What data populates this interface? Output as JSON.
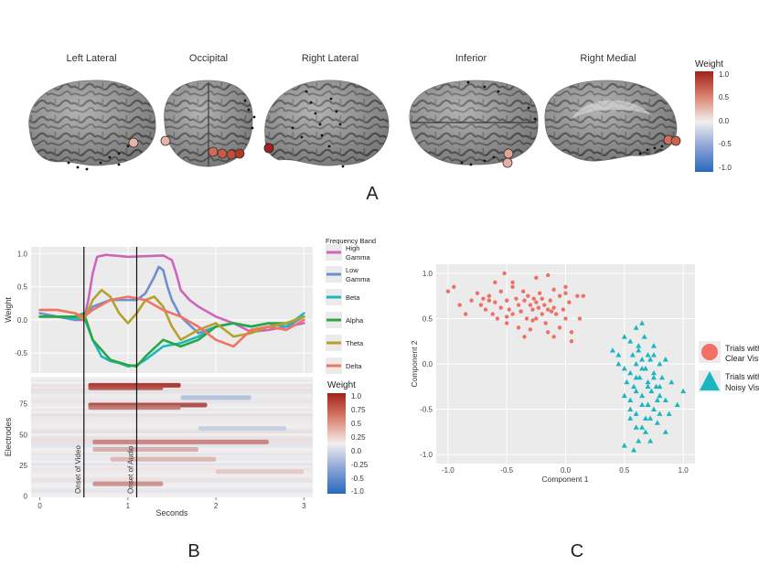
{
  "panel_labels": [
    "A",
    "B",
    "C"
  ],
  "brain_views": [
    {
      "label": "Left Lateral",
      "electrodes": [
        0.55
      ]
    },
    {
      "label": "Occipital",
      "electrodes": [
        0.45,
        0.72,
        0.8,
        0.88,
        0.95
      ]
    },
    {
      "label": "Right Lateral",
      "electrodes": [
        1.0
      ]
    },
    {
      "label": "Inferior",
      "electrodes": [
        0.55,
        0.5
      ]
    },
    {
      "label": "Right Medial",
      "electrodes": [
        0.75,
        0.8
      ]
    }
  ],
  "weight_legend": {
    "title": "Weight",
    "ticks": [
      "1.0",
      "0.5",
      "0.0",
      "-0.5",
      "-1.0"
    ]
  },
  "chart_data": [
    {
      "type": "line",
      "panel": "B",
      "xlabel": "",
      "ylabel": "Weight",
      "xlim": [
        -0.1,
        3.1
      ],
      "ylim": [
        -0.8,
        1.1
      ],
      "yticks": [
        "1.0",
        "0.5",
        "0.0",
        "-0.5"
      ],
      "yticks_values": [
        1.0,
        0.5,
        0.0,
        -0.5
      ],
      "legend_title": "Frequency Band",
      "events": [
        {
          "x": 0.5,
          "label": "Onset of Video"
        },
        {
          "x": 1.1,
          "label": "Onset of Audio"
        }
      ],
      "series": [
        {
          "name": "High Gamma",
          "color": "#cc66bb",
          "x": [
            0,
            0.2,
            0.4,
            0.5,
            0.55,
            0.6,
            0.65,
            0.75,
            1.0,
            1.2,
            1.4,
            1.5,
            1.55,
            1.6,
            1.7,
            1.8,
            2.0,
            2.2,
            2.4,
            2.6,
            2.8,
            3.0
          ],
          "y": [
            0.05,
            0.05,
            0.0,
            0.0,
            0.3,
            0.7,
            0.95,
            0.98,
            0.95,
            0.96,
            0.97,
            0.9,
            0.7,
            0.45,
            0.3,
            0.2,
            0.05,
            -0.05,
            -0.18,
            -0.15,
            -0.1,
            -0.05
          ]
        },
        {
          "name": "Low Gamma",
          "color": "#6e8fcf",
          "x": [
            0,
            0.2,
            0.4,
            0.5,
            0.6,
            0.8,
            1.0,
            1.1,
            1.2,
            1.3,
            1.35,
            1.4,
            1.45,
            1.5,
            1.6,
            1.8,
            2.0,
            2.2,
            2.4,
            2.6,
            2.8,
            3.0
          ],
          "y": [
            0.1,
            0.05,
            0.0,
            0.05,
            0.2,
            0.3,
            0.3,
            0.3,
            0.4,
            0.65,
            0.8,
            0.75,
            0.5,
            0.3,
            0.05,
            -0.2,
            -0.1,
            -0.05,
            -0.1,
            -0.05,
            -0.1,
            0.05
          ]
        },
        {
          "name": "Beta",
          "color": "#1db7c2",
          "x": [
            0,
            0.2,
            0.4,
            0.5,
            0.6,
            0.7,
            0.8,
            0.9,
            1.0,
            1.1,
            1.2,
            1.3,
            1.4,
            1.6,
            1.8,
            2.0,
            2.2,
            2.4,
            2.6,
            2.8,
            3.0
          ],
          "y": [
            0.05,
            0.05,
            0.02,
            0.05,
            -0.3,
            -0.55,
            -0.62,
            -0.65,
            -0.7,
            -0.68,
            -0.6,
            -0.5,
            -0.4,
            -0.35,
            -0.25,
            -0.1,
            -0.05,
            -0.1,
            -0.05,
            -0.1,
            0.1
          ]
        },
        {
          "name": "Alpha",
          "color": "#2aa742",
          "x": [
            0,
            0.2,
            0.4,
            0.5,
            0.6,
            0.8,
            1.0,
            1.1,
            1.2,
            1.4,
            1.6,
            1.8,
            2.0,
            2.2,
            2.4,
            2.6,
            2.8,
            3.0
          ],
          "y": [
            0.05,
            0.05,
            0.05,
            0.1,
            -0.3,
            -0.6,
            -0.68,
            -0.7,
            -0.55,
            -0.3,
            -0.4,
            -0.3,
            -0.1,
            -0.05,
            -0.1,
            -0.05,
            -0.05,
            0.05
          ]
        },
        {
          "name": "Theta",
          "color": "#b5a22c",
          "x": [
            0,
            0.2,
            0.4,
            0.5,
            0.6,
            0.7,
            0.8,
            0.9,
            1.0,
            1.1,
            1.2,
            1.3,
            1.4,
            1.5,
            1.6,
            1.8,
            2.0,
            2.2,
            2.4,
            2.6,
            2.8,
            3.0
          ],
          "y": [
            0.15,
            0.15,
            0.1,
            0.0,
            0.3,
            0.45,
            0.35,
            0.1,
            -0.05,
            0.1,
            0.3,
            0.35,
            0.2,
            -0.1,
            -0.3,
            -0.15,
            -0.05,
            -0.25,
            -0.2,
            -0.1,
            -0.05,
            0.05
          ]
        },
        {
          "name": "Delta",
          "color": "#f07464",
          "x": [
            0,
            0.2,
            0.4,
            0.5,
            0.6,
            0.8,
            1.0,
            1.2,
            1.4,
            1.6,
            1.8,
            2.0,
            2.2,
            2.4,
            2.6,
            2.8,
            3.0
          ],
          "y": [
            0.15,
            0.15,
            0.1,
            0.05,
            0.15,
            0.3,
            0.35,
            0.3,
            0.15,
            0.05,
            -0.1,
            -0.3,
            -0.4,
            -0.15,
            -0.1,
            -0.15,
            0.0
          ]
        }
      ]
    },
    {
      "type": "heatmap",
      "panel": "B",
      "xlabel": "Seconds",
      "ylabel": "Electrodes",
      "xlim": [
        -0.1,
        3.1
      ],
      "ylim": [
        -1,
        97
      ],
      "xticks": [
        "0",
        "1",
        "2",
        "3"
      ],
      "xticks_values": [
        0,
        1,
        2,
        3
      ],
      "yticks": [
        "0",
        "25",
        "50",
        "75"
      ],
      "yticks_values": [
        0,
        25,
        50,
        75
      ],
      "colorbar_title": "Weight",
      "colorbar_ticks": [
        "1.0",
        "0.75",
        "0.5",
        "0.25",
        "0.0",
        "-0.25",
        "-0.5",
        "-1.0"
      ],
      "bands": [
        {
          "electrode": 90,
          "x_start": 0.55,
          "x_end": 1.6,
          "value": 0.95
        },
        {
          "electrode": 88,
          "x_start": 0.55,
          "x_end": 1.4,
          "value": 0.8
        },
        {
          "electrode": 74,
          "x_start": 0.55,
          "x_end": 1.9,
          "value": 0.85
        },
        {
          "electrode": 72,
          "x_start": 0.55,
          "x_end": 1.6,
          "value": 0.6
        },
        {
          "electrode": 44,
          "x_start": 0.6,
          "x_end": 2.6,
          "value": 0.55
        },
        {
          "electrode": 38,
          "x_start": 0.6,
          "x_end": 1.8,
          "value": 0.35
        },
        {
          "electrode": 30,
          "x_start": 0.8,
          "x_end": 2.0,
          "value": 0.3
        },
        {
          "electrode": 10,
          "x_start": 0.6,
          "x_end": 1.4,
          "value": 0.5
        },
        {
          "electrode": 80,
          "x_start": 1.6,
          "x_end": 2.4,
          "value": -0.35
        },
        {
          "electrode": 55,
          "x_start": 1.8,
          "x_end": 2.8,
          "value": -0.25
        },
        {
          "electrode": 20,
          "x_start": 2.0,
          "x_end": 3.0,
          "value": 0.2
        }
      ]
    },
    {
      "type": "scatter",
      "panel": "C",
      "xlabel": "Component 1",
      "ylabel": "Component 2",
      "xlim": [
        -1.1,
        1.1
      ],
      "ylim": [
        -1.1,
        1.1
      ],
      "xticks": [
        "-1.0",
        "-0.5",
        "0.0",
        "0.5",
        "1.0"
      ],
      "xticks_values": [
        -1.0,
        -0.5,
        0.0,
        0.5,
        1.0
      ],
      "yticks": [
        "1.0",
        "0.5",
        "0.0",
        "-0.5",
        "-1.0"
      ],
      "yticks_values": [
        1.0,
        0.5,
        0.0,
        -0.5,
        -1.0
      ],
      "series": [
        {
          "name": "Trials with Clear Visuals",
          "marker": "circle",
          "color": "#f07066",
          "x": [
            -1.0,
            -0.95,
            -0.9,
            -0.85,
            -0.8,
            -0.75,
            -0.72,
            -0.7,
            -0.68,
            -0.65,
            -0.62,
            -0.6,
            -0.58,
            -0.55,
            -0.55,
            -0.52,
            -0.5,
            -0.5,
            -0.48,
            -0.45,
            -0.45,
            -0.42,
            -0.4,
            -0.4,
            -0.38,
            -0.36,
            -0.35,
            -0.33,
            -0.32,
            -0.3,
            -0.3,
            -0.28,
            -0.27,
            -0.25,
            -0.25,
            -0.23,
            -0.22,
            -0.2,
            -0.2,
            -0.18,
            -0.17,
            -0.15,
            -0.15,
            -0.13,
            -0.12,
            -0.1,
            -0.1,
            -0.08,
            -0.05,
            -0.05,
            -0.02,
            0.0,
            0.0,
            0.03,
            0.05,
            0.1,
            0.12,
            0.15,
            -0.6,
            -0.35,
            -0.15,
            0.05,
            -0.45,
            -0.25,
            0.0,
            -0.38,
            -0.1,
            -0.28,
            -0.5,
            -0.65
          ],
          "y": [
            0.8,
            0.85,
            0.65,
            0.55,
            0.7,
            0.78,
            0.65,
            0.72,
            0.6,
            0.75,
            0.55,
            0.68,
            0.5,
            0.8,
            0.62,
            1.0,
            0.7,
            0.45,
            0.6,
            0.85,
            0.55,
            0.72,
            0.65,
            0.4,
            0.58,
            0.8,
            0.7,
            0.5,
            0.75,
            0.65,
            0.38,
            0.6,
            0.72,
            0.68,
            0.5,
            0.62,
            0.78,
            0.55,
            0.72,
            0.65,
            0.45,
            0.6,
            0.98,
            0.7,
            0.58,
            0.82,
            0.3,
            0.55,
            0.75,
            0.4,
            0.6,
            0.78,
            0.5,
            0.68,
            0.35,
            0.75,
            0.5,
            0.75,
            0.9,
            0.3,
            0.35,
            0.25,
            0.9,
            0.95,
            0.85,
            0.58,
            0.62,
            0.48,
            0.52,
            0.7
          ]
        },
        {
          "name": "Trials with Noisy Visuals",
          "marker": "triangle",
          "color": "#19b6c0",
          "x": [
            0.4,
            0.45,
            0.5,
            0.5,
            0.52,
            0.55,
            0.55,
            0.57,
            0.58,
            0.6,
            0.6,
            0.6,
            0.62,
            0.63,
            0.65,
            0.65,
            0.65,
            0.67,
            0.68,
            0.7,
            0.7,
            0.7,
            0.72,
            0.73,
            0.75,
            0.75,
            0.75,
            0.77,
            0.78,
            0.8,
            0.8,
            0.82,
            0.85,
            0.85,
            0.88,
            0.9,
            0.95,
            1.0,
            0.5,
            0.55,
            0.6,
            0.62,
            0.65,
            0.68,
            0.7,
            0.72,
            0.75,
            0.78,
            0.8,
            0.55,
            0.6,
            0.65,
            0.7,
            0.75,
            0.8,
            0.6,
            0.62,
            0.58,
            0.68,
            0.72,
            0.5,
            0.45,
            0.85,
            0.55,
            0.65
          ],
          "y": [
            0.15,
            0.1,
            0.3,
            -0.05,
            -0.2,
            0.25,
            -0.4,
            0.1,
            -0.25,
            0.4,
            0.0,
            -0.55,
            0.2,
            -0.15,
            0.45,
            -0.05,
            -0.35,
            0.3,
            -0.6,
            0.1,
            -0.2,
            -0.45,
            0.05,
            -0.3,
            0.2,
            -0.1,
            -0.5,
            -0.25,
            -0.65,
            0.0,
            -0.35,
            -0.15,
            -0.4,
            0.05,
            -0.55,
            -0.2,
            -0.45,
            -0.3,
            -0.35,
            -0.1,
            -0.7,
            0.15,
            -0.45,
            -0.05,
            -0.25,
            -0.6,
            -0.15,
            -0.4,
            -0.25,
            -0.5,
            -0.3,
            0.05,
            -0.45,
            0.1,
            -0.55,
            -0.15,
            -0.85,
            -0.95,
            -0.75,
            -0.85,
            -0.9,
            0.0,
            -0.75,
            -0.6,
            -0.7
          ]
        }
      ]
    }
  ]
}
